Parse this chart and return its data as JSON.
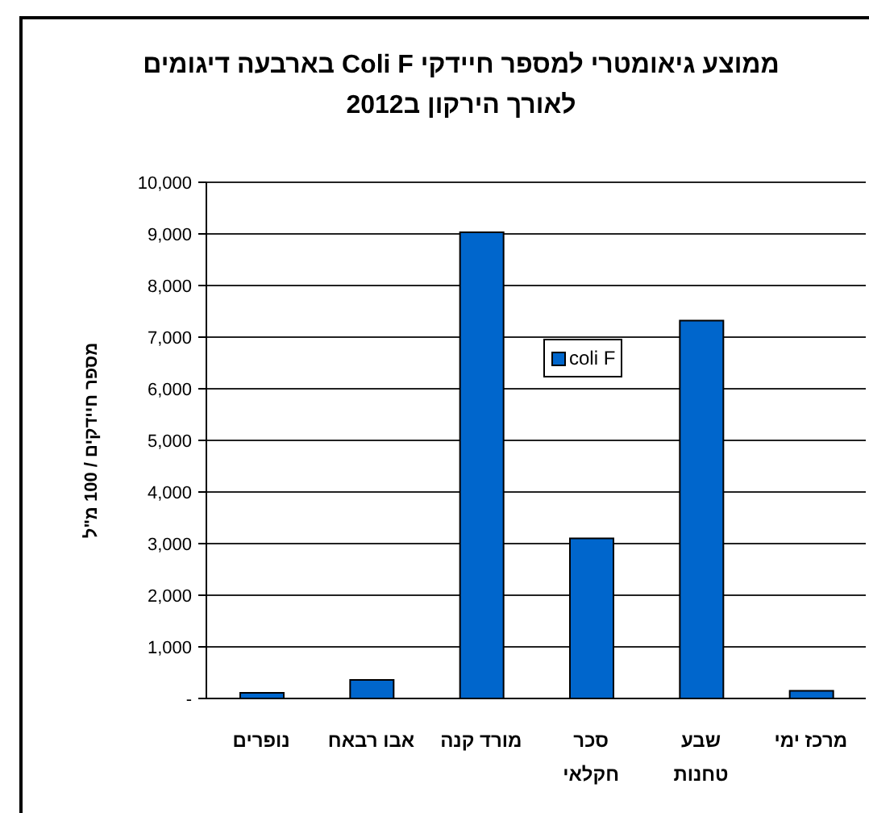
{
  "chart_data": {
    "type": "bar",
    "title": "ממוצע גיאומטרי למספר חיידקי Coli F בארבעה דיגומים לאורך הירקון ב2012",
    "ylabel": "מספר חיידקים / 100 מ\"ל",
    "categories": [
      "נופרים",
      "אבו רבאח",
      "מורד קנה",
      "סכר חקלאי",
      "שבע טחנות",
      "מרכז ימי"
    ],
    "series": [
      {
        "name": "coli F",
        "color": "#0066cc",
        "values": [
          110,
          360,
          9030,
          3100,
          7320,
          150
        ]
      }
    ],
    "ylim": [
      0,
      10000
    ],
    "yticks": [
      {
        "value": 0,
        "label": "-"
      },
      {
        "value": 1000,
        "label": "1,000"
      },
      {
        "value": 2000,
        "label": "2,000"
      },
      {
        "value": 3000,
        "label": "3,000"
      },
      {
        "value": 4000,
        "label": "4,000"
      },
      {
        "value": 5000,
        "label": "5,000"
      },
      {
        "value": 6000,
        "label": "6,000"
      },
      {
        "value": 7000,
        "label": "7,000"
      },
      {
        "value": 8000,
        "label": "8,000"
      },
      {
        "value": 9000,
        "label": "9,000"
      },
      {
        "value": 10000,
        "label": "10,000"
      }
    ],
    "grid": "y",
    "legend": "top"
  }
}
